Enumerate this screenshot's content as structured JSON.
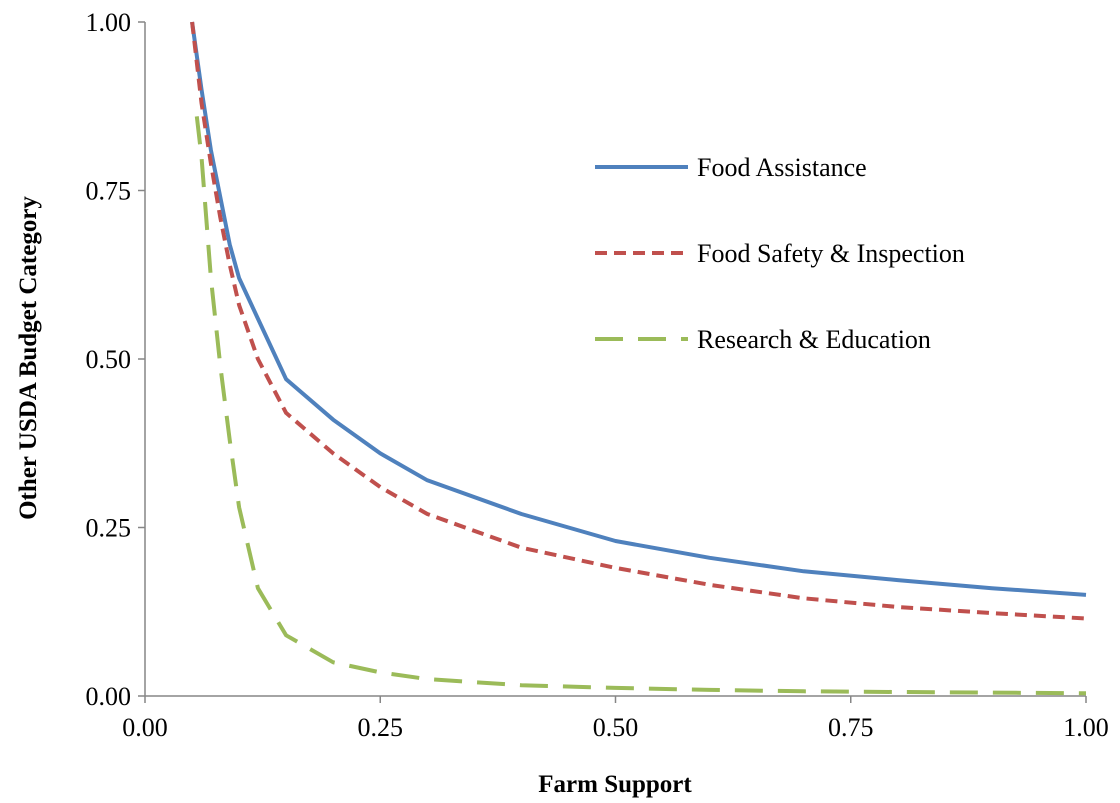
{
  "chart_data": {
    "type": "line",
    "title": "",
    "xlabel": "Farm Support",
    "ylabel": "Other USDA Budget Category",
    "xlim": [
      0,
      1
    ],
    "ylim": [
      0,
      1
    ],
    "x_ticks": [
      "0.00",
      "0.25",
      "0.50",
      "0.75",
      "1.00"
    ],
    "y_ticks": [
      "0.00",
      "0.25",
      "0.50",
      "0.75",
      "1.00"
    ],
    "grid": false,
    "legend_position": "right",
    "series": [
      {
        "name": "Food Assistance",
        "color": "#4F81BD",
        "dash": "solid",
        "x": [
          0.05,
          0.06,
          0.07,
          0.08,
          0.09,
          0.1,
          0.12,
          0.15,
          0.2,
          0.25,
          0.3,
          0.4,
          0.5,
          0.6,
          0.7,
          0.8,
          0.9,
          1.0
        ],
        "y": [
          1.0,
          0.9,
          0.81,
          0.74,
          0.67,
          0.62,
          0.56,
          0.47,
          0.41,
          0.36,
          0.32,
          0.27,
          0.23,
          0.205,
          0.185,
          0.172,
          0.16,
          0.15
        ]
      },
      {
        "name": "Food Safety & Inspection",
        "color": "#C0504D",
        "dash": "short",
        "x": [
          0.05,
          0.06,
          0.07,
          0.08,
          0.09,
          0.1,
          0.12,
          0.15,
          0.2,
          0.25,
          0.3,
          0.4,
          0.5,
          0.6,
          0.7,
          0.8,
          0.9,
          1.0
        ],
        "y": [
          1.0,
          0.88,
          0.79,
          0.71,
          0.64,
          0.58,
          0.5,
          0.42,
          0.36,
          0.31,
          0.27,
          0.22,
          0.19,
          0.165,
          0.145,
          0.132,
          0.123,
          0.115
        ]
      },
      {
        "name": "Research & Education",
        "color": "#9BBB59",
        "dash": "long",
        "x": [
          0.055,
          0.06,
          0.07,
          0.08,
          0.09,
          0.1,
          0.12,
          0.15,
          0.2,
          0.25,
          0.3,
          0.4,
          0.5,
          0.6,
          0.7,
          0.8,
          0.9,
          1.0
        ],
        "y": [
          0.86,
          0.8,
          0.62,
          0.49,
          0.38,
          0.28,
          0.16,
          0.09,
          0.05,
          0.035,
          0.025,
          0.016,
          0.012,
          0.009,
          0.007,
          0.006,
          0.005,
          0.004
        ]
      }
    ]
  }
}
